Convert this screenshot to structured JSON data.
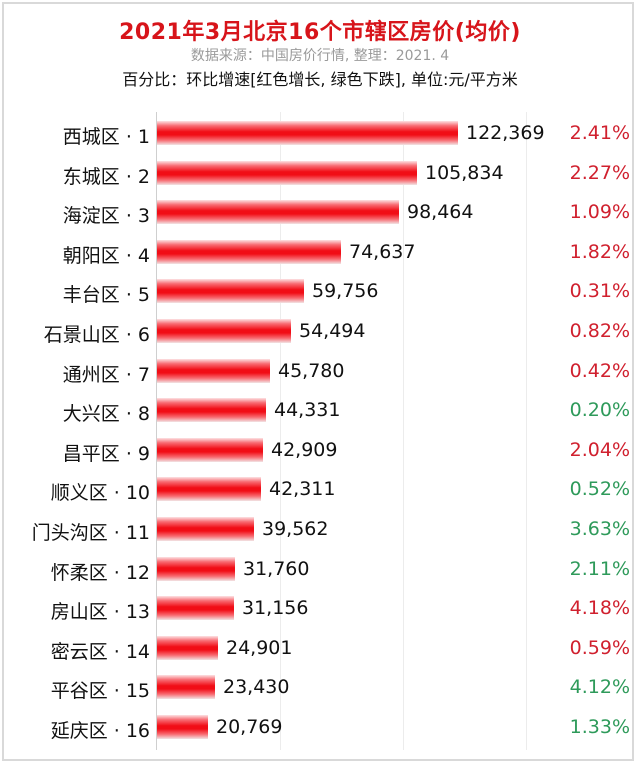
{
  "header": {
    "title": "2021年3月北京16个市辖区房价(均价)",
    "subtitle": "数据来源：中国房价行情, 整理：2021. 4",
    "note": "百分比：环比增速[红色增长, 绿色下跌], 单位:元/平方米"
  },
  "colors": {
    "title": "#d7141a",
    "bar": "#f10d16",
    "up": "#d0202e",
    "down": "#2e9a5a"
  },
  "chart_data": {
    "type": "bar",
    "orientation": "horizontal",
    "title": "2021年3月北京16个市辖区房价(均价)",
    "subtitle": "数据来源：中国房价行情, 整理：2021. 4",
    "annotation": "百分比：环比增速[红色增长, 绿色下跌], 单位:元/平方米",
    "xlabel": "",
    "ylabel": "",
    "xlim": [
      0,
      150000
    ],
    "grid": true,
    "gridlines_x": [
      50000,
      100000,
      150000
    ],
    "legend": "none",
    "categories": [
      "西城区 · 1",
      "东城区 · 2",
      "海淀区 · 3",
      "朝阳区 · 4",
      "丰台区 · 5",
      "石景山区 · 6",
      "通州区 · 7",
      "大兴区 · 8",
      "昌平区 · 9",
      "顺义区 · 10",
      "门头沟区 · 11",
      "怀柔区 · 12",
      "房山区 · 13",
      "密云区 · 14",
      "平谷区 · 15",
      "延庆区 · 16"
    ],
    "values": [
      122369,
      105834,
      98464,
      74637,
      59756,
      54494,
      45780,
      44331,
      42909,
      42311,
      39562,
      31760,
      31156,
      24901,
      23430,
      20769
    ],
    "value_labels": [
      "122,369",
      "105,834",
      "98,464",
      "74,637",
      "59,756",
      "54,494",
      "45,780",
      "44,331",
      "42,909",
      "42,311",
      "39,562",
      "31,760",
      "31,156",
      "24,901",
      "23,430",
      "20,769"
    ],
    "mom_change": [
      "2.41%",
      "2.27%",
      "1.09%",
      "1.82%",
      "0.31%",
      "0.82%",
      "0.42%",
      "0.20%",
      "2.04%",
      "0.52%",
      "3.63%",
      "2.11%",
      "4.18%",
      "0.59%",
      "4.12%",
      "1.33%"
    ],
    "mom_direction": [
      "up",
      "up",
      "up",
      "up",
      "up",
      "up",
      "up",
      "down",
      "up",
      "down",
      "down",
      "down",
      "up",
      "up",
      "down",
      "down"
    ]
  }
}
